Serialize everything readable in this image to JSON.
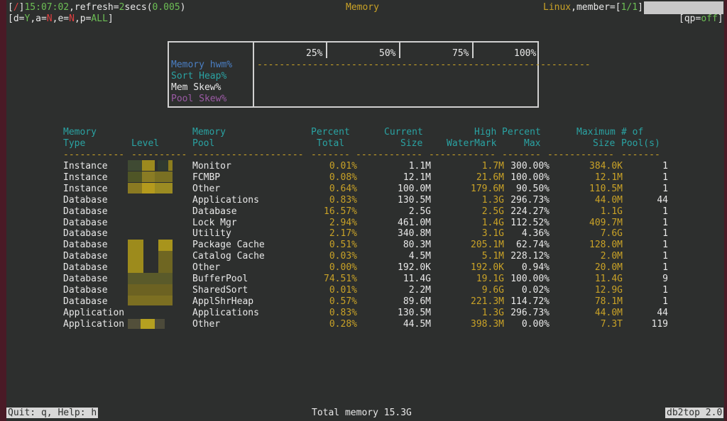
{
  "header": {
    "bracket_open": "[",
    "spinner": "/",
    "bracket_close": "]",
    "time": "15:07:02",
    "refresh_label": ",refresh=",
    "refresh_value": "2",
    "refresh_unit": "secs(",
    "refresh_cost": "0.005",
    "refresh_close": ")",
    "title": "Memory",
    "os_label": "Linux",
    "member_label": ",member=[",
    "member_value": "1/1",
    "member_close": "]",
    "line2_left_a": "[d=",
    "d_value": "Y",
    "a_label": ",a=",
    "a_value": "N",
    "e_label": ",e=",
    "e_value": "N",
    "p_label": ",p=",
    "p_value": "ALL",
    "line2_close": "]",
    "qp_label": "[qp=",
    "qp_value": "off",
    "qp_close": "]"
  },
  "gauge": {
    "ticks": [
      "25%",
      "50%",
      "75%",
      "100%"
    ],
    "dashes": "------------------------------------------------------------",
    "legend": [
      {
        "label": "Memory hwm%",
        "color": "#4b7fc4"
      },
      {
        "label": "Sort Heap%",
        "color": "#2aa3a3"
      },
      {
        "label": "Mem Skew%",
        "color": "#e8e8e8"
      },
      {
        "label": "Pool Skew%",
        "color": "#9b5aa5"
      }
    ]
  },
  "table": {
    "headers": {
      "memory_type": [
        "Memory",
        "Type"
      ],
      "level": [
        "",
        "Level"
      ],
      "memory_pool": [
        "Memory",
        "Pool"
      ],
      "percent_total": [
        "Percent",
        "Total"
      ],
      "current_size": [
        "Current",
        "Size"
      ],
      "high_watermark": [
        "High",
        "WaterMark"
      ],
      "percent_max": [
        "Percent",
        "Max"
      ],
      "maximum_size": [
        "Maximum",
        "Size"
      ],
      "num_pools": [
        "# of",
        "Pool(s)"
      ]
    },
    "separators": {
      "memory_type": "-----------",
      "level": "----------",
      "memory_pool": "--------------------",
      "percent_total": "-------",
      "current_size": "------------",
      "high_watermark": "------------",
      "percent_max": "-------",
      "maximum_size": "------------",
      "num_pools": "-------"
    },
    "rows": [
      {
        "type": "Instance",
        "pool": "Monitor",
        "pct_total": "0.01%",
        "current": "1.1M",
        "hwm": "1.7M",
        "pct_max": "300.00%",
        "max": "384.0K",
        "pools": "1"
      },
      {
        "type": "Instance",
        "pool": "FCMBP",
        "pct_total": "0.08%",
        "current": "12.1M",
        "hwm": "21.6M",
        "pct_max": "100.00%",
        "max": "12.1M",
        "pools": "1"
      },
      {
        "type": "Instance",
        "pool": "Other",
        "pct_total": "0.64%",
        "current": "100.0M",
        "hwm": "179.6M",
        "pct_max": "90.50%",
        "max": "110.5M",
        "pools": "1"
      },
      {
        "type": "Database",
        "pool": "Applications",
        "pct_total": "0.83%",
        "current": "130.5M",
        "hwm": "1.3G",
        "pct_max": "296.73%",
        "max": "44.0M",
        "pools": "44"
      },
      {
        "type": "Database",
        "pool": "Database",
        "pct_total": "16.57%",
        "current": "2.5G",
        "hwm": "2.5G",
        "pct_max": "224.27%",
        "max": "1.1G",
        "pools": "1"
      },
      {
        "type": "Database",
        "pool": "Lock Mgr",
        "pct_total": "2.94%",
        "current": "461.0M",
        "hwm": "1.4G",
        "pct_max": "112.52%",
        "max": "409.7M",
        "pools": "1"
      },
      {
        "type": "Database",
        "pool": "Utility",
        "pct_total": "2.17%",
        "current": "340.8M",
        "hwm": "3.1G",
        "pct_max": "4.36%",
        "max": "7.6G",
        "pools": "1"
      },
      {
        "type": "Database",
        "pool": "Package Cache",
        "pct_total": "0.51%",
        "current": "80.3M",
        "hwm": "205.1M",
        "pct_max": "62.74%",
        "max": "128.0M",
        "pools": "1"
      },
      {
        "type": "Database",
        "pool": "Catalog Cache",
        "pct_total": "0.03%",
        "current": "4.5M",
        "hwm": "5.1M",
        "pct_max": "228.12%",
        "max": "2.0M",
        "pools": "1"
      },
      {
        "type": "Database",
        "pool": "Other",
        "pct_total": "0.00%",
        "current": "192.0K",
        "hwm": "192.0K",
        "pct_max": "0.94%",
        "max": "20.0M",
        "pools": "1"
      },
      {
        "type": "Database",
        "pool": "BufferPool",
        "pct_total": "74.51%",
        "current": "11.4G",
        "hwm": "19.1G",
        "pct_max": "100.00%",
        "max": "11.4G",
        "pools": "9"
      },
      {
        "type": "Database",
        "pool": "SharedSort",
        "pct_total": "0.01%",
        "current": "2.2M",
        "hwm": "9.6G",
        "pct_max": "0.02%",
        "max": "12.9G",
        "pools": "1"
      },
      {
        "type": "Database",
        "pool": "ApplShrHeap",
        "pct_total": "0.57%",
        "current": "89.6M",
        "hwm": "221.3M",
        "pct_max": "114.72%",
        "max": "78.1M",
        "pools": "1"
      },
      {
        "type": "Application",
        "pool": "Applications",
        "pct_total": "0.83%",
        "current": "130.5M",
        "hwm": "1.3G",
        "pct_max": "296.73%",
        "max": "44.0M",
        "pools": "44"
      },
      {
        "type": "Application",
        "pool": "Other",
        "pct_total": "0.28%",
        "current": "44.5M",
        "hwm": "398.3M",
        "pct_max": "0.00%",
        "max": "7.3T",
        "pools": "119"
      }
    ]
  },
  "footer": {
    "help": "Quit: q, Help: h",
    "total": "Total memory 15.3G",
    "app": "db2top 2.0"
  },
  "colors": {
    "yellow": "#c9a227",
    "green": "#6dbf55",
    "red": "#e04040",
    "background": "#2d2f2e"
  }
}
